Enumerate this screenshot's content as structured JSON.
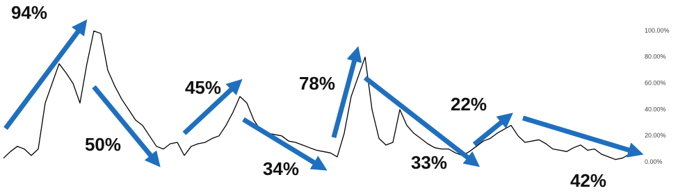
{
  "chart_data": {
    "type": "line",
    "categories": [
      null,
      null,
      null,
      null,
      null,
      null,
      null,
      null,
      null,
      null,
      null,
      null,
      null,
      null,
      null,
      null,
      null,
      null,
      null,
      null,
      null,
      null,
      null,
      null,
      null,
      null,
      null,
      null,
      null,
      null,
      null,
      null,
      null,
      null,
      null,
      null,
      null,
      null,
      null,
      null,
      null,
      null,
      null,
      null,
      null,
      null,
      null,
      null,
      null,
      null,
      null,
      null,
      null,
      null,
      null,
      null,
      null,
      null,
      null,
      null,
      null,
      null,
      null,
      null,
      null,
      null,
      null,
      null,
      null,
      null,
      null,
      null,
      null,
      null,
      null,
      null,
      null,
      null,
      null,
      null,
      null,
      null,
      null,
      null,
      null,
      null,
      null,
      null,
      null,
      null,
      null
    ],
    "values": [
      3,
      8,
      12,
      10,
      5,
      10,
      45,
      60,
      75,
      68,
      60,
      45,
      75,
      100,
      98,
      70,
      58,
      48,
      40,
      32,
      28,
      20,
      12,
      10,
      14,
      15,
      5,
      12,
      14,
      15,
      18,
      20,
      28,
      38,
      50,
      45,
      32,
      24,
      22,
      21,
      20,
      16,
      15,
      13,
      11,
      9,
      8,
      7,
      4,
      22,
      50,
      65,
      80,
      40,
      18,
      13,
      15,
      40,
      28,
      22,
      18,
      14,
      11,
      10,
      10,
      7,
      5,
      8,
      12,
      16,
      18,
      22,
      25,
      28,
      20,
      15,
      16,
      17,
      14,
      10,
      9,
      8,
      11,
      13,
      9,
      10,
      6,
      4,
      2,
      3,
      6
    ],
    "color": "#000000",
    "ylim": [
      -4,
      104
    ],
    "yticks": [
      {
        "value": 0,
        "label": "0.00%"
      },
      {
        "value": 20,
        "label": "20.00%"
      },
      {
        "value": 40,
        "label": "40.00%"
      },
      {
        "value": 60,
        "label": "60.00%"
      },
      {
        "value": 80,
        "label": "80.00%"
      },
      {
        "value": 100,
        "label": "100.00%"
      }
    ],
    "grid": false,
    "annotations": [
      "94%",
      "50%",
      "45%",
      "34%",
      "78%",
      "33%",
      "22%",
      "42%"
    ]
  }
}
